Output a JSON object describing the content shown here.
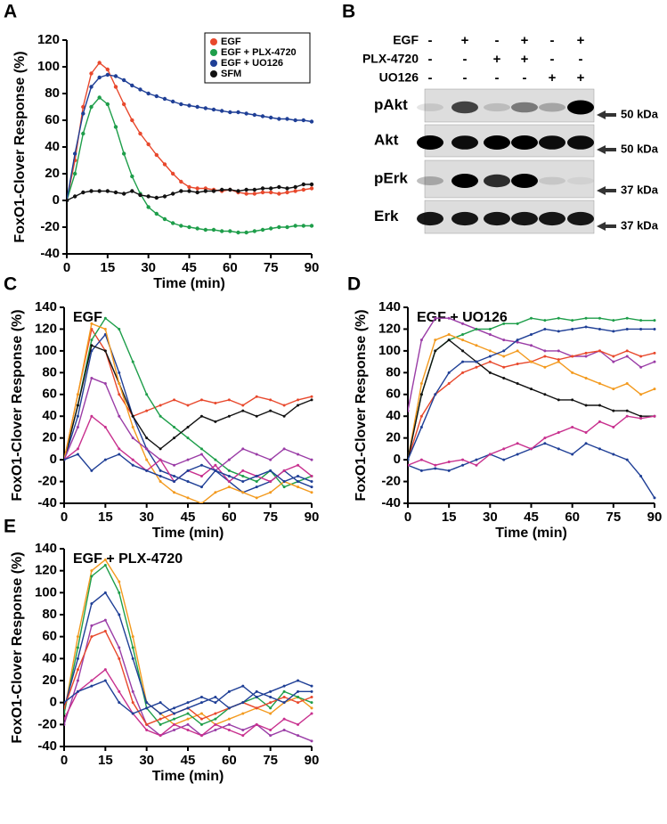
{
  "chart_data": [
    {
      "type": "line",
      "panel": "A",
      "ylabel": "FoxO1-Clover Response (%)",
      "xlabel": "Time (min)",
      "legend": "upper right",
      "x": [
        0,
        3,
        6,
        9,
        12,
        15,
        18,
        21,
        24,
        27,
        30,
        33,
        36,
        39,
        42,
        45,
        48,
        51,
        54,
        57,
        60,
        63,
        66,
        69,
        72,
        75,
        78,
        81,
        84,
        87,
        90
      ],
      "xlim": [
        0,
        90
      ],
      "xticks": [
        0,
        15,
        30,
        45,
        60,
        75,
        90
      ],
      "ylim": [
        -40,
        120
      ],
      "yticks": [
        -40,
        -20,
        0,
        20,
        40,
        60,
        80,
        100,
        120
      ],
      "series": [
        {
          "name": "EGF",
          "color": "#e8482c",
          "values": [
            0,
            30,
            70,
            95,
            103,
            98,
            85,
            72,
            60,
            50,
            42,
            34,
            27,
            20,
            14,
            10,
            9,
            9,
            8,
            7,
            8,
            6,
            5,
            5,
            6,
            6,
            5,
            6,
            7,
            8,
            9
          ]
        },
        {
          "name": "EGF + PLX-4720",
          "color": "#1e9e4a",
          "values": [
            0,
            20,
            50,
            70,
            77,
            72,
            55,
            35,
            18,
            5,
            -5,
            -10,
            -14,
            -17,
            -19,
            -20,
            -21,
            -22,
            -22,
            -23,
            -23,
            -24,
            -24,
            -23,
            -22,
            -21,
            -20,
            -20,
            -19,
            -19,
            -19
          ]
        },
        {
          "name": "EGF + UO126",
          "color": "#1f3f96",
          "values": [
            0,
            35,
            65,
            85,
            92,
            94,
            93,
            90,
            86,
            83,
            80,
            78,
            76,
            74,
            72,
            71,
            70,
            69,
            68,
            67,
            66,
            66,
            65,
            64,
            63,
            62,
            61,
            61,
            60,
            60,
            59
          ]
        },
        {
          "name": "SFM",
          "color": "#111111",
          "values": [
            0,
            3,
            6,
            7,
            7,
            7,
            6,
            5,
            7,
            4,
            3,
            2,
            3,
            5,
            7,
            7,
            6,
            7,
            7,
            8,
            8,
            7,
            8,
            8,
            9,
            9,
            10,
            9,
            10,
            12,
            12
          ]
        }
      ]
    },
    {
      "type": "line",
      "panel": "C",
      "title": "EGF",
      "ylabel": "FoxO1-Clover Response (%)",
      "xlabel": "Time (min)",
      "x": [
        0,
        5,
        10,
        15,
        20,
        25,
        30,
        35,
        40,
        45,
        50,
        55,
        60,
        65,
        70,
        75,
        80,
        85,
        90
      ],
      "xlim": [
        0,
        90
      ],
      "xticks": [
        0,
        15,
        30,
        45,
        60,
        75,
        90
      ],
      "ylim": [
        -40,
        140
      ],
      "yticks": [
        -40,
        -20,
        0,
        20,
        40,
        60,
        80,
        100,
        120,
        140
      ],
      "series": [
        {
          "color": "#e8482c",
          "values": [
            0,
            60,
            120,
            100,
            60,
            40,
            45,
            50,
            55,
            50,
            55,
            52,
            55,
            50,
            58,
            55,
            50,
            55,
            58
          ]
        },
        {
          "color": "#1e9e4a",
          "values": [
            0,
            50,
            110,
            130,
            120,
            90,
            60,
            40,
            30,
            20,
            10,
            0,
            -10,
            -15,
            -20,
            -10,
            -25,
            -20,
            -15
          ]
        },
        {
          "color": "#1f3f96",
          "values": [
            0,
            40,
            100,
            115,
            80,
            40,
            10,
            -10,
            -15,
            -20,
            -25,
            -10,
            -20,
            -30,
            -25,
            -20,
            -10,
            -20,
            -25
          ]
        },
        {
          "color": "#111111",
          "values": [
            0,
            50,
            105,
            100,
            70,
            40,
            20,
            10,
            20,
            30,
            40,
            35,
            40,
            45,
            40,
            45,
            40,
            50,
            55
          ]
        },
        {
          "color": "#f39a1e",
          "values": [
            0,
            60,
            125,
            120,
            70,
            30,
            0,
            -20,
            -30,
            -35,
            -40,
            -30,
            -25,
            -30,
            -35,
            -30,
            -20,
            -25,
            -30
          ]
        },
        {
          "color": "#9a3ca6",
          "values": [
            0,
            30,
            75,
            70,
            40,
            20,
            10,
            0,
            -5,
            0,
            5,
            -10,
            0,
            10,
            5,
            0,
            10,
            5,
            0
          ]
        },
        {
          "color": "#c8308e",
          "values": [
            0,
            10,
            40,
            30,
            10,
            0,
            -10,
            0,
            -20,
            -10,
            -15,
            -5,
            -20,
            -10,
            -15,
            -20,
            -10,
            -5,
            -15
          ]
        },
        {
          "color": "#1f3f96",
          "values": [
            0,
            5,
            -10,
            0,
            5,
            -5,
            -10,
            -15,
            -20,
            -10,
            -5,
            -10,
            -15,
            -20,
            -15,
            -10,
            -20,
            -15,
            -20
          ]
        }
      ]
    },
    {
      "type": "line",
      "panel": "D",
      "title": "EGF + UO126",
      "ylabel": "FoxO1-Clover Response (%)",
      "xlabel": "Time (min)",
      "x": [
        0,
        5,
        10,
        15,
        20,
        25,
        30,
        35,
        40,
        45,
        50,
        55,
        60,
        65,
        70,
        75,
        80,
        85,
        90
      ],
      "xlim": [
        0,
        90
      ],
      "xticks": [
        0,
        15,
        30,
        45,
        60,
        75,
        90
      ],
      "ylim": [
        -40,
        140
      ],
      "yticks": [
        -40,
        -20,
        0,
        20,
        40,
        60,
        80,
        100,
        120,
        140
      ],
      "series": [
        {
          "color": "#9a3ca6",
          "values": [
            45,
            110,
            130,
            130,
            125,
            120,
            115,
            110,
            108,
            105,
            100,
            100,
            95,
            95,
            100,
            90,
            95,
            85,
            90
          ]
        },
        {
          "color": "#1e9e4a",
          "values": [
            0,
            60,
            100,
            110,
            115,
            120,
            120,
            125,
            125,
            130,
            128,
            130,
            128,
            130,
            130,
            128,
            130,
            128,
            128
          ]
        },
        {
          "color": "#1f3f96",
          "values": [
            -5,
            -10,
            -8,
            -10,
            -5,
            0,
            5,
            0,
            5,
            10,
            15,
            10,
            5,
            15,
            10,
            5,
            0,
            -15,
            -35
          ]
        },
        {
          "color": "#e8482c",
          "values": [
            0,
            40,
            60,
            70,
            80,
            85,
            90,
            85,
            88,
            90,
            95,
            92,
            95,
            98,
            100,
            95,
            100,
            95,
            98
          ]
        },
        {
          "color": "#f39a1e",
          "values": [
            0,
            70,
            110,
            115,
            110,
            105,
            100,
            95,
            100,
            90,
            85,
            90,
            80,
            75,
            70,
            65,
            70,
            60,
            65
          ]
        },
        {
          "color": "#111111",
          "values": [
            0,
            60,
            100,
            110,
            100,
            90,
            80,
            75,
            70,
            65,
            60,
            55,
            55,
            50,
            50,
            45,
            45,
            40,
            40
          ]
        },
        {
          "color": "#1f3f96",
          "values": [
            0,
            30,
            60,
            80,
            90,
            90,
            95,
            100,
            110,
            115,
            120,
            118,
            120,
            122,
            120,
            118,
            120,
            120,
            120
          ]
        },
        {
          "color": "#c8308e",
          "values": [
            -5,
            0,
            -5,
            -2,
            0,
            -5,
            5,
            10,
            15,
            10,
            20,
            25,
            30,
            25,
            35,
            30,
            40,
            38,
            40
          ]
        }
      ]
    },
    {
      "type": "line",
      "panel": "E",
      "title": "EGF + PLX-4720",
      "ylabel": "FoxO1-Clover Response (%)",
      "xlabel": "Time (min)",
      "x": [
        0,
        5,
        10,
        15,
        20,
        25,
        30,
        35,
        40,
        45,
        50,
        55,
        60,
        65,
        70,
        75,
        80,
        85,
        90
      ],
      "xlim": [
        0,
        90
      ],
      "xticks": [
        0,
        15,
        30,
        45,
        60,
        75,
        90
      ],
      "ylim": [
        -40,
        140
      ],
      "yticks": [
        -40,
        -20,
        0,
        20,
        40,
        60,
        80,
        100,
        120,
        140
      ],
      "series": [
        {
          "color": "#f39a1e",
          "values": [
            -10,
            60,
            120,
            130,
            110,
            60,
            0,
            -10,
            -20,
            -15,
            -10,
            -20,
            -15,
            -10,
            -5,
            -10,
            0,
            5,
            -5
          ]
        },
        {
          "color": "#1e9e4a",
          "values": [
            -10,
            50,
            115,
            125,
            100,
            50,
            -5,
            -20,
            -15,
            -10,
            -20,
            -15,
            -5,
            0,
            5,
            -5,
            10,
            5,
            0
          ]
        },
        {
          "color": "#1f3f96",
          "values": [
            -5,
            40,
            90,
            100,
            80,
            40,
            0,
            -10,
            -5,
            0,
            5,
            0,
            10,
            15,
            5,
            10,
            15,
            20,
            15
          ]
        },
        {
          "color": "#9a3ca6",
          "values": [
            -20,
            20,
            70,
            75,
            50,
            10,
            -20,
            -30,
            -25,
            -20,
            -30,
            -25,
            -20,
            -25,
            -20,
            -30,
            -25,
            -30,
            -35
          ]
        },
        {
          "color": "#e8482c",
          "values": [
            -5,
            30,
            60,
            65,
            40,
            0,
            -20,
            -15,
            -10,
            -5,
            -15,
            -10,
            -5,
            0,
            -5,
            0,
            5,
            0,
            5
          ]
        },
        {
          "color": "#c8308e",
          "values": [
            -15,
            10,
            20,
            30,
            10,
            -10,
            -25,
            -30,
            -20,
            -25,
            -30,
            -20,
            -25,
            -30,
            -20,
            -25,
            -15,
            -20,
            -10
          ]
        },
        {
          "color": "#1f3f96",
          "values": [
            0,
            10,
            15,
            20,
            0,
            -10,
            -5,
            0,
            -10,
            -5,
            0,
            5,
            -5,
            0,
            10,
            5,
            0,
            10,
            10
          ]
        }
      ]
    }
  ],
  "blot": {
    "panel": "B",
    "treatments": [
      {
        "name": "EGF",
        "signs": [
          "-",
          "+",
          "-",
          "+",
          "-",
          "+"
        ]
      },
      {
        "name": "PLX-4720",
        "signs": [
          "-",
          "-",
          "+",
          "+",
          "-",
          "-"
        ]
      },
      {
        "name": "UO126",
        "signs": [
          "-",
          "-",
          "-",
          "-",
          "+",
          "+"
        ]
      }
    ],
    "rows": [
      {
        "name": "pAkt",
        "marker": "50 kDa"
      },
      {
        "name": "Akt",
        "marker": "50 kDa"
      },
      {
        "name": "pErk",
        "marker": "37 kDa"
      },
      {
        "name": "Erk",
        "marker": "37 kDa"
      }
    ]
  }
}
